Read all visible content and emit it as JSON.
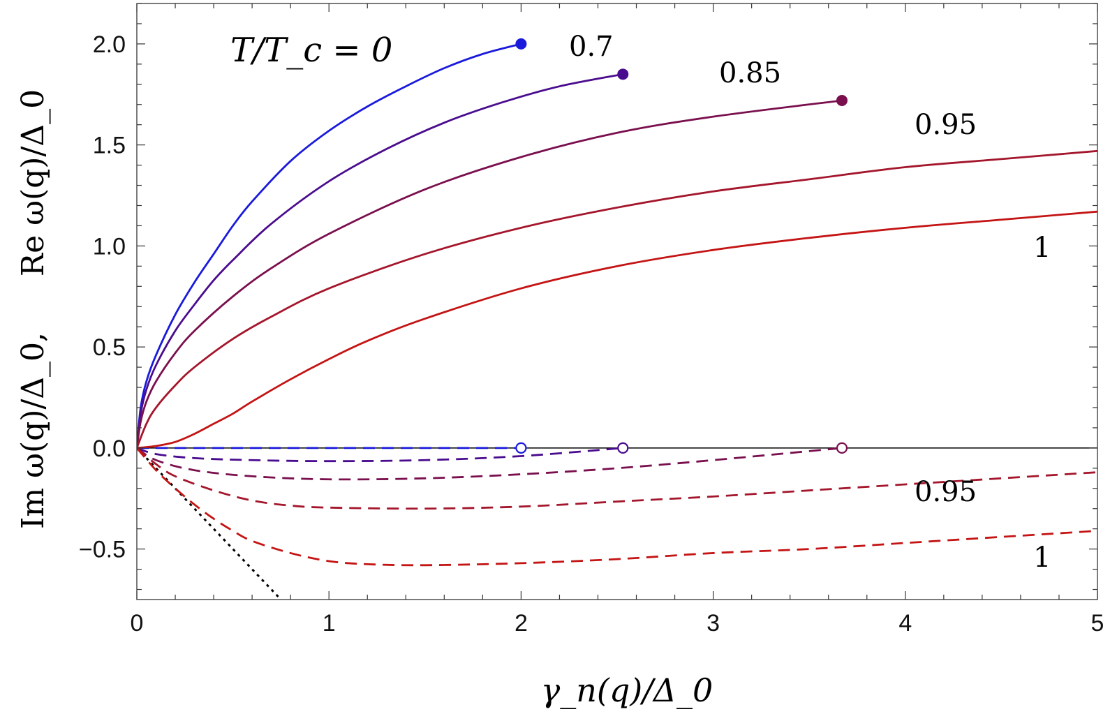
{
  "chart_data": {
    "type": "line",
    "title": "",
    "title_annotation": "T/T_c = 0",
    "xlabel": "γ_n(q)/Δ_0",
    "ylabel_im": "Im ω(q)/Δ_0,",
    "ylabel_re": "Re ω(q)/Δ_0",
    "xlim": [
      0,
      5
    ],
    "ylim": [
      -0.75,
      2.2
    ],
    "x_ticks": [
      "0",
      "1",
      "2",
      "3",
      "4",
      "5"
    ],
    "y_ticks": [
      "−0.5",
      "0.0",
      "0.5",
      "1.0",
      "1.5",
      "2.0"
    ],
    "grid": false,
    "series": [
      {
        "name": "T/T_c = 0",
        "label": "T/T_c = 0",
        "color": "#1a1adc",
        "re": [
          [
            0,
            0
          ],
          [
            0.02,
            0.2
          ],
          [
            0.05,
            0.33
          ],
          [
            0.1,
            0.46
          ],
          [
            0.2,
            0.66
          ],
          [
            0.3,
            0.82
          ],
          [
            0.4,
            0.96
          ],
          [
            0.5,
            1.1
          ],
          [
            0.6,
            1.22
          ],
          [
            0.8,
            1.42
          ],
          [
            1.0,
            1.57
          ],
          [
            1.2,
            1.69
          ],
          [
            1.4,
            1.79
          ],
          [
            1.6,
            1.88
          ],
          [
            1.8,
            1.95
          ],
          [
            2.0,
            2.0
          ]
        ],
        "im": [
          [
            0,
            0
          ],
          [
            0.5,
            0
          ],
          [
            1.0,
            0
          ],
          [
            1.5,
            0
          ],
          [
            2.0,
            0
          ]
        ],
        "endpoint": [
          2.0,
          2.0
        ]
      },
      {
        "name": "T/T_c = 0.7",
        "label": "0.7",
        "color": "#4a0c8e",
        "re": [
          [
            0,
            0
          ],
          [
            0.02,
            0.17
          ],
          [
            0.05,
            0.29
          ],
          [
            0.1,
            0.41
          ],
          [
            0.2,
            0.58
          ],
          [
            0.3,
            0.71
          ],
          [
            0.4,
            0.83
          ],
          [
            0.5,
            0.93
          ],
          [
            0.7,
            1.11
          ],
          [
            1.0,
            1.32
          ],
          [
            1.3,
            1.48
          ],
          [
            1.6,
            1.61
          ],
          [
            1.9,
            1.71
          ],
          [
            2.2,
            1.79
          ],
          [
            2.53,
            1.85
          ]
        ],
        "im": [
          [
            0,
            0
          ],
          [
            0.1,
            -0.03
          ],
          [
            0.3,
            -0.05
          ],
          [
            0.6,
            -0.06
          ],
          [
            1.0,
            -0.065
          ],
          [
            1.5,
            -0.06
          ],
          [
            2.0,
            -0.04
          ],
          [
            2.53,
            0
          ]
        ],
        "endpoint": [
          2.53,
          1.85
        ]
      },
      {
        "name": "T/T_c = 0.85",
        "label": "0.85",
        "color": "#7a0f4e",
        "re": [
          [
            0,
            0
          ],
          [
            0.02,
            0.13
          ],
          [
            0.05,
            0.23
          ],
          [
            0.1,
            0.33
          ],
          [
            0.2,
            0.47
          ],
          [
            0.3,
            0.58
          ],
          [
            0.5,
            0.75
          ],
          [
            0.7,
            0.89
          ],
          [
            1.0,
            1.06
          ],
          [
            1.5,
            1.28
          ],
          [
            2.0,
            1.44
          ],
          [
            2.5,
            1.56
          ],
          [
            3.0,
            1.64
          ],
          [
            3.67,
            1.72
          ]
        ],
        "im": [
          [
            0,
            0
          ],
          [
            0.1,
            -0.06
          ],
          [
            0.3,
            -0.11
          ],
          [
            0.6,
            -0.14
          ],
          [
            1.0,
            -0.155
          ],
          [
            1.5,
            -0.15
          ],
          [
            2.0,
            -0.13
          ],
          [
            2.5,
            -0.1
          ],
          [
            3.0,
            -0.06
          ],
          [
            3.67,
            0
          ]
        ],
        "endpoint": [
          3.67,
          1.72
        ]
      },
      {
        "name": "T/T_c = 0.95",
        "label": "0.95",
        "label_im": "0.95",
        "color": "#a4162c",
        "re": [
          [
            0,
            0
          ],
          [
            0.05,
            0.12
          ],
          [
            0.1,
            0.2
          ],
          [
            0.2,
            0.31
          ],
          [
            0.3,
            0.4
          ],
          [
            0.5,
            0.54
          ],
          [
            0.7,
            0.65
          ],
          [
            1.0,
            0.79
          ],
          [
            1.5,
            0.96
          ],
          [
            2.0,
            1.09
          ],
          [
            2.5,
            1.19
          ],
          [
            3.0,
            1.27
          ],
          [
            3.5,
            1.33
          ],
          [
            4.0,
            1.39
          ],
          [
            4.5,
            1.43
          ],
          [
            5.0,
            1.47
          ]
        ],
        "im": [
          [
            0,
            0
          ],
          [
            0.1,
            -0.08
          ],
          [
            0.2,
            -0.14
          ],
          [
            0.4,
            -0.21
          ],
          [
            0.6,
            -0.26
          ],
          [
            0.8,
            -0.285
          ],
          [
            1.0,
            -0.295
          ],
          [
            1.5,
            -0.3
          ],
          [
            2.0,
            -0.29
          ],
          [
            2.5,
            -0.265
          ],
          [
            3.0,
            -0.24
          ],
          [
            3.5,
            -0.21
          ],
          [
            4.0,
            -0.18
          ],
          [
            4.5,
            -0.15
          ],
          [
            5.0,
            -0.12
          ]
        ],
        "endpoint": null
      },
      {
        "name": "T/T_c = 1",
        "label": "1",
        "label_im": "1",
        "color": "#c41414",
        "re": [
          [
            0,
            0
          ],
          [
            0.1,
            0.01
          ],
          [
            0.2,
            0.03
          ],
          [
            0.3,
            0.07
          ],
          [
            0.4,
            0.12
          ],
          [
            0.5,
            0.17
          ],
          [
            0.6,
            0.23
          ],
          [
            0.8,
            0.34
          ],
          [
            1.0,
            0.44
          ],
          [
            1.2,
            0.53
          ],
          [
            1.5,
            0.64
          ],
          [
            2.0,
            0.79
          ],
          [
            2.5,
            0.9
          ],
          [
            3.0,
            0.98
          ],
          [
            3.5,
            1.04
          ],
          [
            4.0,
            1.09
          ],
          [
            4.5,
            1.13
          ],
          [
            5.0,
            1.17
          ]
        ],
        "im": [
          [
            0,
            0
          ],
          [
            0.1,
            -0.11
          ],
          [
            0.2,
            -0.2
          ],
          [
            0.3,
            -0.28
          ],
          [
            0.4,
            -0.35
          ],
          [
            0.5,
            -0.41
          ],
          [
            0.6,
            -0.46
          ],
          [
            0.8,
            -0.52
          ],
          [
            1.0,
            -0.56
          ],
          [
            1.2,
            -0.575
          ],
          [
            1.5,
            -0.58
          ],
          [
            2.0,
            -0.57
          ],
          [
            2.5,
            -0.55
          ],
          [
            3.0,
            -0.52
          ],
          [
            3.5,
            -0.5
          ],
          [
            4.0,
            -0.47
          ],
          [
            4.5,
            -0.44
          ],
          [
            5.0,
            -0.41
          ]
        ],
        "endpoint": null
      }
    ],
    "reference_line": {
      "name": "asymptote",
      "style": "dotted",
      "color": "#000000",
      "points": [
        [
          0,
          0
        ],
        [
          0.75,
          -0.75
        ]
      ]
    },
    "zero_line": {
      "y": 0,
      "color": "#000000"
    }
  }
}
